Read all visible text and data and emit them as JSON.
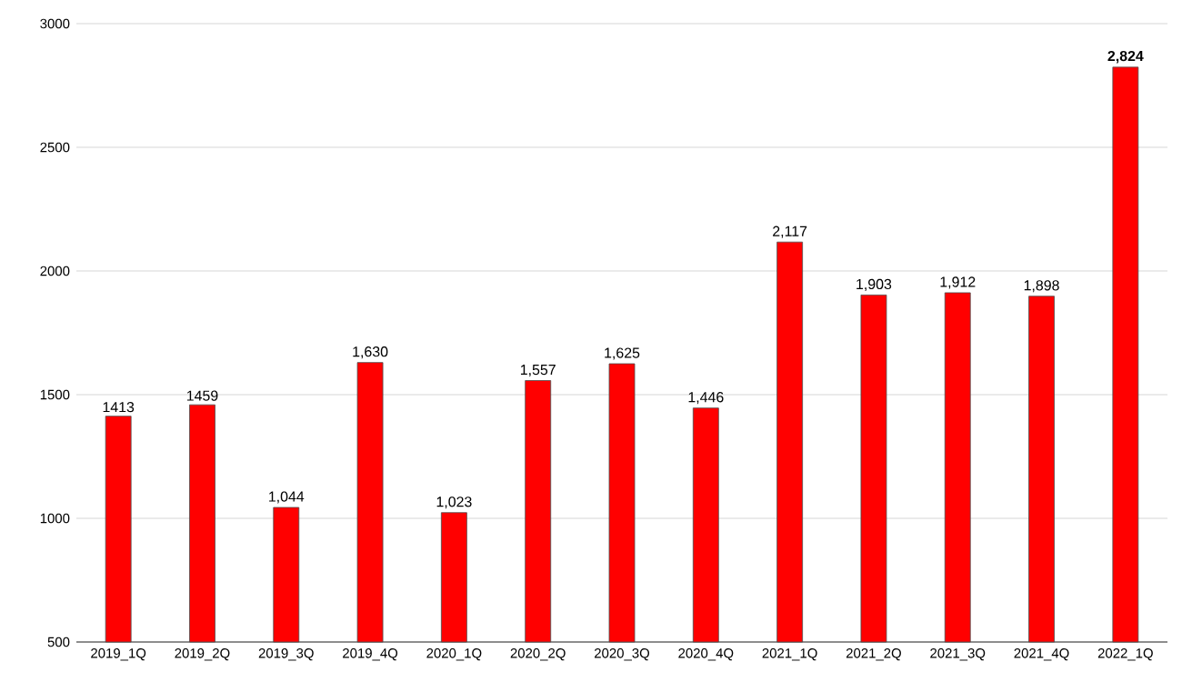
{
  "chart_data": {
    "type": "bar",
    "categories": [
      "2019_1Q",
      "2019_2Q",
      "2019_3Q",
      "2019_4Q",
      "2020_1Q",
      "2020_2Q",
      "2020_3Q",
      "2020_4Q",
      "2021_1Q",
      "2021_2Q",
      "2021_3Q",
      "2021_4Q",
      "2022_1Q"
    ],
    "values": [
      1413,
      1459,
      1044,
      1630,
      1023,
      1557,
      1625,
      1446,
      2117,
      1903,
      1912,
      1898,
      2824
    ],
    "value_labels": [
      "1413",
      "1459",
      "1,044",
      "1,630",
      "1,023",
      "1,557",
      "1,625",
      "1,446",
      "2,117",
      "1,903",
      "1,912",
      "1,898",
      "**2,824**"
    ],
    "color": "#ff0000",
    "ylim": [
      500,
      3000
    ],
    "yticks": [
      500,
      1000,
      1500,
      2000,
      2500,
      3000
    ],
    "grid": "y"
  }
}
